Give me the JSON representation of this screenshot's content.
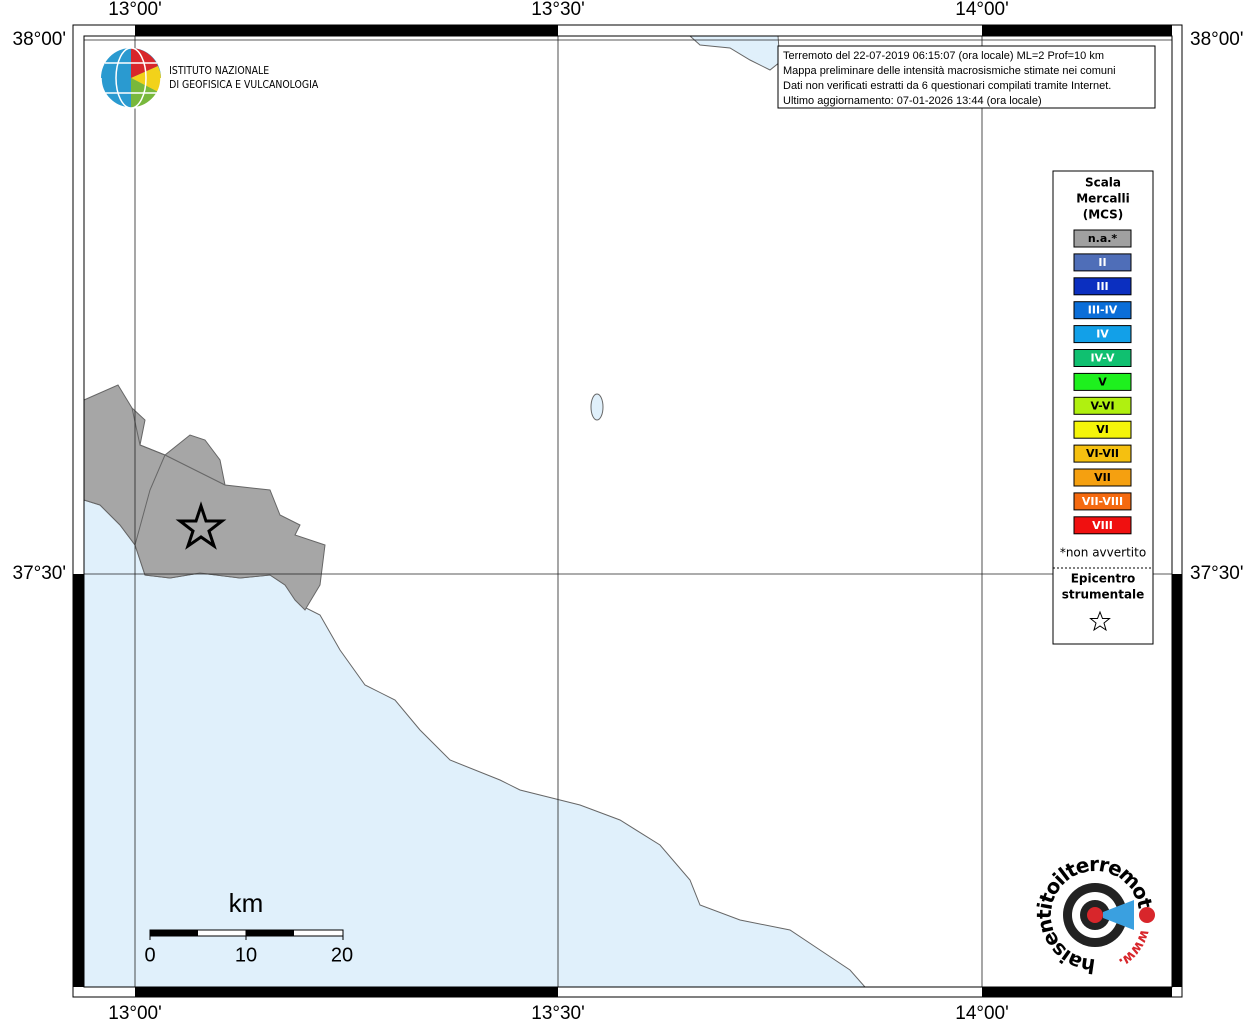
{
  "map": {
    "lon_ticks": [
      "13°00'",
      "13°30'",
      "14°00'"
    ],
    "lat_ticks": [
      "38°00'",
      "37°30'"
    ]
  },
  "info": [
    "Terremoto del 22-07-2019 06:15:07 (ora locale) ML=2 Prof=10 km",
    "Mappa preliminare delle intensità macrosismiche stimate nei comuni",
    "Dati non verificati estratti da 6 questionari compilati tramite Internet.",
    "Ultimo aggiornamento: 07-01-2026 13:44 (ora locale)"
  ],
  "legend": {
    "title": [
      "Scala",
      "Mercalli",
      "(MCS)"
    ],
    "items": [
      {
        "label": "n.a.*",
        "color": "#a0a0a0"
      },
      {
        "label": "II",
        "color": "#4f6eb8"
      },
      {
        "label": "III",
        "color": "#0b2fc0"
      },
      {
        "label": "III-IV",
        "color": "#0b6ed8"
      },
      {
        "label": "IV",
        "color": "#12a0e8"
      },
      {
        "label": "IV-V",
        "color": "#10c070"
      },
      {
        "label": "V",
        "color": "#1ef01e"
      },
      {
        "label": "V-VI",
        "color": "#b0f010"
      },
      {
        "label": "VI",
        "color": "#f5f50a"
      },
      {
        "label": "VI-VII",
        "color": "#f5c010"
      },
      {
        "label": "VII",
        "color": "#f5a010"
      },
      {
        "label": "VII-VIII",
        "color": "#f56a10"
      },
      {
        "label": "VIII",
        "color": "#f01010"
      }
    ],
    "note": "*non avvertito",
    "epicenter": [
      "Epicentro",
      "strumentale"
    ]
  },
  "scale": {
    "unit": "km",
    "labels": [
      "0",
      "10",
      "20"
    ]
  },
  "logo": {
    "ingv": [
      "ISTITUTO NAZIONALE",
      "DI GEOFISICA E VULCANOLOGIA"
    ],
    "site": "haisentitoilterremoto.it",
    "www": "www."
  }
}
